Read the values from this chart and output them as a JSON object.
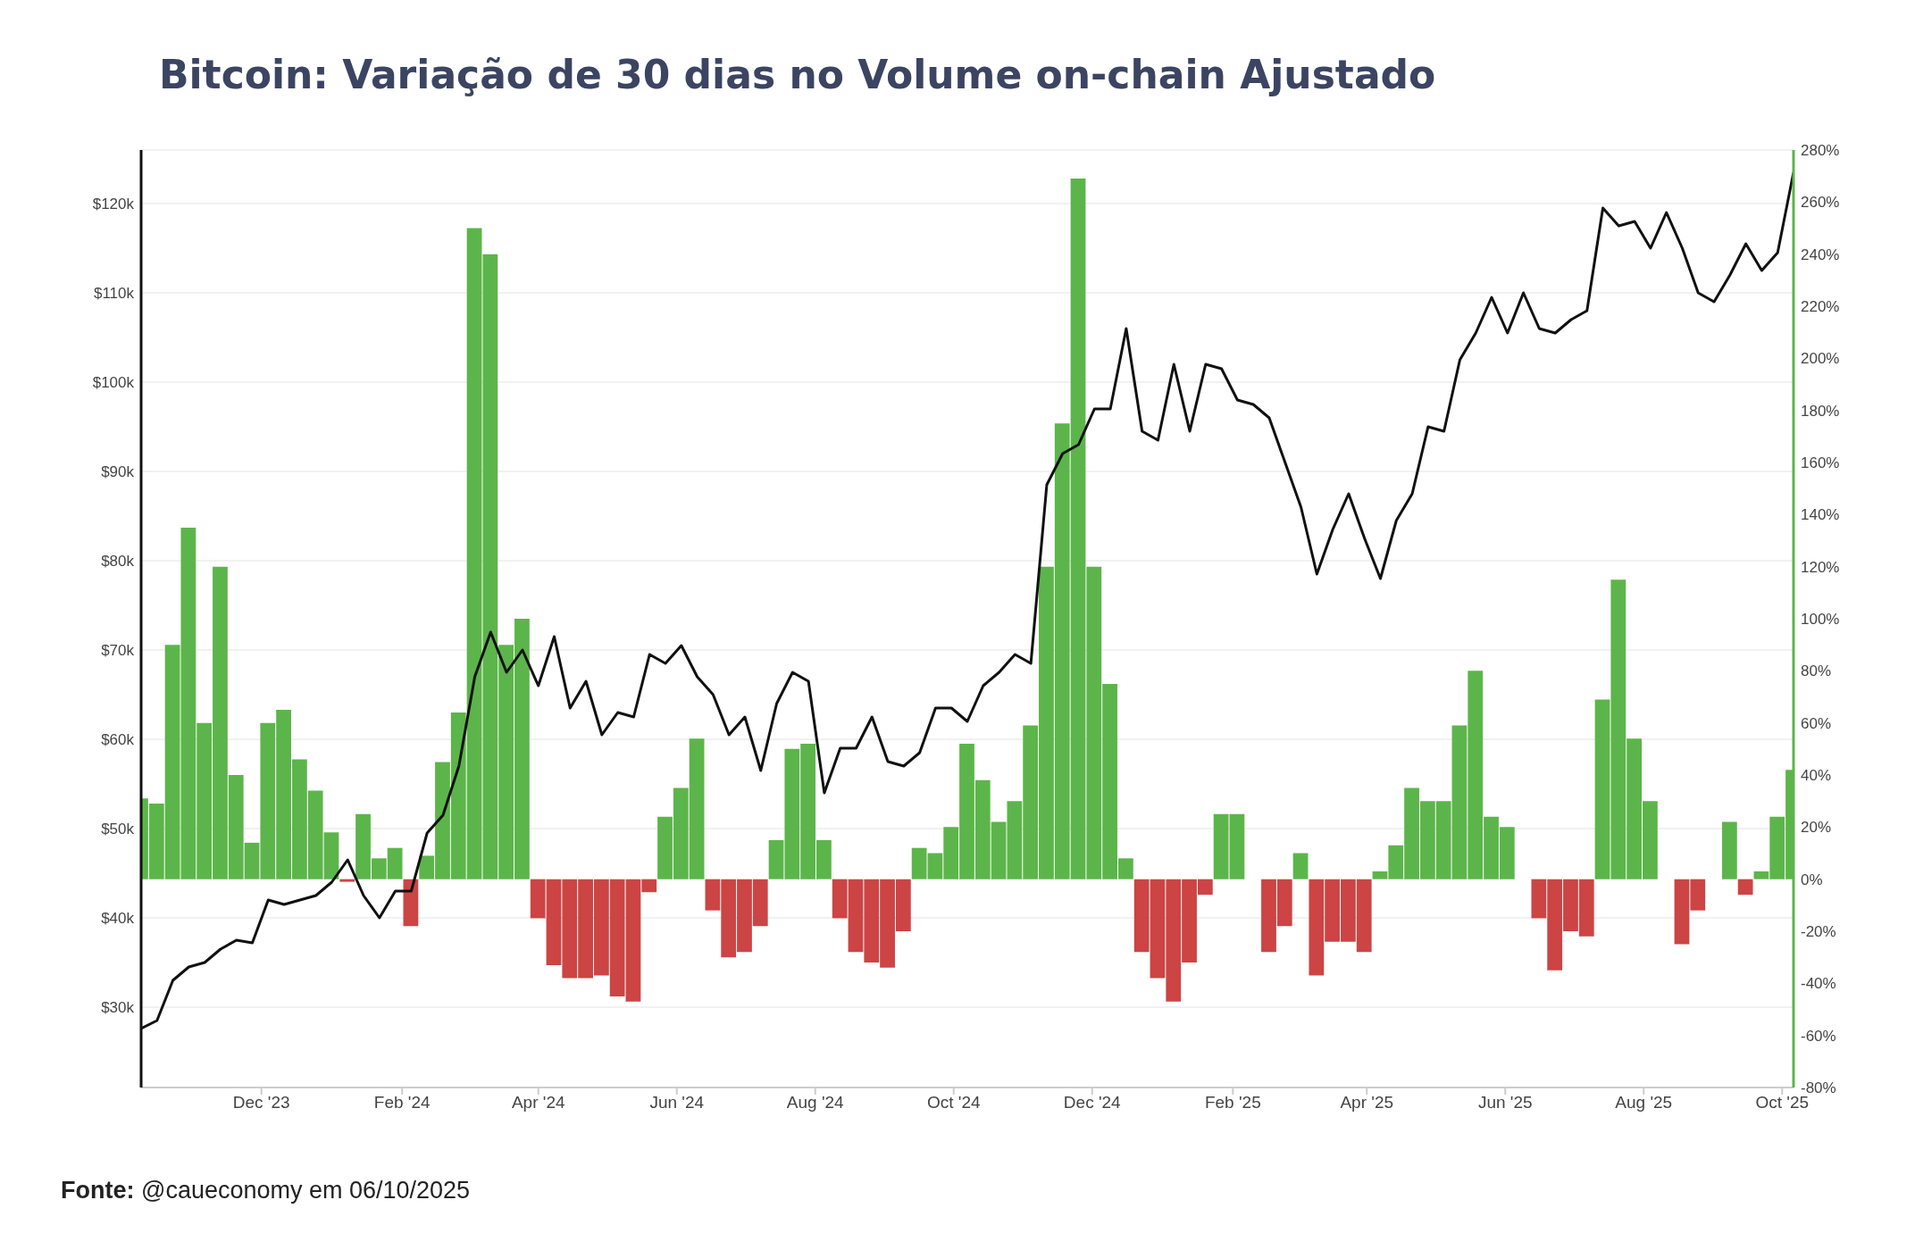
{
  "chart_data": {
    "type": "bar",
    "title": "Bitcoin: Variação de 30 dias no Volume on-chain Ajustado",
    "annotations": [
      "Fonte: @caueconomy em 06/10/2025"
    ],
    "x": [
      "2023-10-09",
      "2023-10-16",
      "2023-10-23",
      "2023-10-30",
      "2023-11-06",
      "2023-11-13",
      "2023-11-20",
      "2023-11-27",
      "2023-12-04",
      "2023-12-11",
      "2023-12-18",
      "2023-12-25",
      "2024-01-01",
      "2024-01-08",
      "2024-01-15",
      "2024-01-22",
      "2024-01-29",
      "2024-02-05",
      "2024-02-12",
      "2024-02-19",
      "2024-02-26",
      "2024-03-04",
      "2024-03-11",
      "2024-03-18",
      "2024-03-25",
      "2024-04-01",
      "2024-04-08",
      "2024-04-15",
      "2024-04-22",
      "2024-04-29",
      "2024-05-06",
      "2024-05-13",
      "2024-05-20",
      "2024-05-27",
      "2024-06-03",
      "2024-06-10",
      "2024-06-17",
      "2024-06-24",
      "2024-07-01",
      "2024-07-08",
      "2024-07-15",
      "2024-07-22",
      "2024-07-29",
      "2024-08-05",
      "2024-08-12",
      "2024-08-19",
      "2024-08-26",
      "2024-09-02",
      "2024-09-09",
      "2024-09-16",
      "2024-09-23",
      "2024-09-30",
      "2024-10-07",
      "2024-10-14",
      "2024-10-21",
      "2024-10-28",
      "2024-11-04",
      "2024-11-11",
      "2024-11-18",
      "2024-11-25",
      "2024-12-02",
      "2024-12-09",
      "2024-12-16",
      "2024-12-23",
      "2024-12-30",
      "2025-01-06",
      "2025-01-13",
      "2025-01-20",
      "2025-01-27",
      "2025-02-03",
      "2025-02-10",
      "2025-02-17",
      "2025-02-24",
      "2025-03-03",
      "2025-03-10",
      "2025-03-17",
      "2025-03-24",
      "2025-03-31",
      "2025-04-07",
      "2025-04-14",
      "2025-04-21",
      "2025-04-28",
      "2025-05-05",
      "2025-05-12",
      "2025-05-19",
      "2025-05-26",
      "2025-06-02",
      "2025-06-09",
      "2025-06-16",
      "2025-06-23",
      "2025-06-30",
      "2025-07-07",
      "2025-07-14",
      "2025-07-21",
      "2025-07-28",
      "2025-08-04",
      "2025-08-11",
      "2025-08-18",
      "2025-08-25",
      "2025-09-01",
      "2025-09-08",
      "2025-09-15",
      "2025-09-22",
      "2025-09-29",
      "2025-10-06"
    ],
    "series": [
      {
        "axis": "y2",
        "values": [
          31,
          29,
          90,
          135,
          60,
          120,
          40,
          14,
          60,
          65,
          46,
          34,
          18,
          -1,
          25,
          8,
          12,
          -18,
          9,
          45,
          64,
          250,
          240,
          90,
          100,
          -15,
          -33,
          -38,
          -38,
          -37,
          -45,
          -47,
          -5,
          24,
          35,
          54,
          -12,
          -30,
          -28,
          -18,
          15,
          50,
          52,
          15,
          -15,
          -28,
          -32,
          -34,
          -20,
          12,
          10,
          20,
          52,
          38,
          22,
          30,
          59,
          120,
          175,
          269,
          120,
          75,
          8,
          -28,
          -38,
          -47,
          -32,
          -6,
          25,
          25,
          0,
          -28,
          -18,
          10,
          -37,
          -24,
          -24,
          -28,
          3,
          13,
          35,
          30,
          30,
          59,
          80,
          24,
          20,
          0,
          -15,
          -35,
          -20,
          -22,
          69,
          115,
          54,
          30,
          0,
          -25,
          -12,
          0,
          22,
          -6,
          3,
          24,
          42
        ],
        "colors": [
          "#5cb54a",
          "#5cb54a",
          "#5cb54a",
          "#5cb54a",
          "#5cb54a",
          "#5cb54a",
          "#5cb54a",
          "#5cb54a",
          "#5cb54a",
          "#5cb54a",
          "#5cb54a",
          "#5cb54a",
          "#5cb54a",
          "#cc4444",
          "#5cb54a",
          "#5cb54a",
          "#5cb54a",
          "#cc4444",
          "#5cb54a",
          "#5cb54a",
          "#5cb54a",
          "#5cb54a",
          "#5cb54a",
          "#5cb54a",
          "#5cb54a",
          "#cc4444",
          "#cc4444",
          "#cc4444",
          "#cc4444",
          "#cc4444",
          "#cc4444",
          "#cc4444",
          "#cc4444",
          "#5cb54a",
          "#5cb54a",
          "#5cb54a",
          "#cc4444",
          "#cc4444",
          "#cc4444",
          "#cc4444",
          "#5cb54a",
          "#5cb54a",
          "#5cb54a",
          "#5cb54a",
          "#cc4444",
          "#cc4444",
          "#cc4444",
          "#cc4444",
          "#cc4444",
          "#5cb54a",
          "#5cb54a",
          "#5cb54a",
          "#5cb54a",
          "#5cb54a",
          "#5cb54a",
          "#5cb54a",
          "#5cb54a",
          "#5cb54a",
          "#5cb54a",
          "#5cb54a",
          "#5cb54a",
          "#5cb54a",
          "#5cb54a",
          "#cc4444",
          "#cc4444",
          "#cc4444",
          "#cc4444",
          "#cc4444",
          "#5cb54a",
          "#5cb54a",
          "#5cb54a",
          "#cc4444",
          "#cc4444",
          "#5cb54a",
          "#cc4444",
          "#cc4444",
          "#cc4444",
          "#cc4444",
          "#5cb54a",
          "#5cb54a",
          "#5cb54a",
          "#5cb54a",
          "#5cb54a",
          "#5cb54a",
          "#5cb54a",
          "#5cb54a",
          "#5cb54a",
          "#5cb54a",
          "#cc4444",
          "#cc4444",
          "#cc4444",
          "#cc4444",
          "#5cb54a",
          "#5cb54a",
          "#5cb54a",
          "#5cb54a",
          "#5cb54a",
          "#cc4444",
          "#cc4444",
          "#5cb54a",
          "#5cb54a",
          "#cc4444",
          "#5cb54a",
          "#5cb54a",
          "#5cb54a"
        ]
      },
      {
        "type": "line",
        "axis": "y",
        "color": "#111111",
        "values": [
          27.6,
          28.5,
          33.0,
          34.5,
          35.0,
          36.5,
          37.5,
          37.2,
          42.0,
          41.5,
          42.0,
          42.5,
          44.0,
          46.5,
          42.5,
          40.0,
          43.0,
          43.0,
          49.5,
          51.5,
          57.0,
          67.0,
          72.0,
          67.5,
          70.0,
          66.0,
          71.5,
          63.5,
          66.5,
          60.5,
          63.0,
          62.5,
          69.5,
          68.5,
          70.5,
          67.0,
          65.0,
          60.5,
          62.5,
          56.5,
          64.0,
          67.5,
          66.5,
          54.0,
          59.0,
          59.0,
          62.5,
          57.5,
          57.0,
          58.5,
          63.5,
          63.5,
          62.0,
          66.0,
          67.5,
          69.5,
          68.5,
          88.5,
          92.0,
          93.0,
          97.0,
          97.0,
          106.0,
          94.5,
          93.5,
          102.0,
          94.5,
          102.0,
          101.5,
          98.0,
          97.5,
          96.0,
          91.0,
          86.0,
          78.5,
          83.5,
          87.5,
          82.5,
          78.0,
          84.5,
          87.5,
          95.0,
          94.5,
          102.5,
          105.5,
          109.5,
          105.5,
          110.0,
          106.0,
          105.5,
          107.0,
          108.0,
          119.5,
          117.5,
          118.0,
          115.0,
          119.0,
          115.0,
          110.0,
          109.0,
          112.0,
          115.5,
          112.5,
          114.5,
          123.5
        ]
      }
    ],
    "xlim": [
      "2023-10-09",
      "2025-10-06"
    ],
    "xticks": [
      {
        "value": "2023-12-01",
        "label": "Dec '23"
      },
      {
        "value": "2024-02-01",
        "label": "Feb '24"
      },
      {
        "value": "2024-04-01",
        "label": "Apr '24"
      },
      {
        "value": "2024-06-01",
        "label": "Jun '24"
      },
      {
        "value": "2024-08-01",
        "label": "Aug '24"
      },
      {
        "value": "2024-10-01",
        "label": "Oct '24"
      },
      {
        "value": "2024-12-01",
        "label": "Dec '24"
      },
      {
        "value": "2025-02-01",
        "label": "Feb '25"
      },
      {
        "value": "2025-04-01",
        "label": "Apr '25"
      },
      {
        "value": "2025-06-01",
        "label": "Jun '25"
      },
      {
        "value": "2025-08-01",
        "label": "Aug '25"
      },
      {
        "value": "2025-10-01",
        "label": "Oct '25"
      }
    ],
    "ylim": [
      21,
      126
    ],
    "yticks": [
      {
        "value": 30,
        "label": "$30k"
      },
      {
        "value": 40,
        "label": "$40k"
      },
      {
        "value": 50,
        "label": "$50k"
      },
      {
        "value": 60,
        "label": "$60k"
      },
      {
        "value": 70,
        "label": "$70k"
      },
      {
        "value": 80,
        "label": "$80k"
      },
      {
        "value": 90,
        "label": "$90k"
      },
      {
        "value": 100,
        "label": "$100k"
      },
      {
        "value": 110,
        "label": "$110k"
      },
      {
        "value": 120,
        "label": "$120k"
      }
    ],
    "y2lim": [
      -80,
      280
    ],
    "y2ticks": [
      {
        "value": -80,
        "label": "-80%"
      },
      {
        "value": -60,
        "label": "-60%"
      },
      {
        "value": -40,
        "label": "-40%"
      },
      {
        "value": -20,
        "label": "-20%"
      },
      {
        "value": 0,
        "label": "0%"
      },
      {
        "value": 20,
        "label": "20%"
      },
      {
        "value": 40,
        "label": "40%"
      },
      {
        "value": 60,
        "label": "60%"
      },
      {
        "value": 80,
        "label": "80%"
      },
      {
        "value": 100,
        "label": "100%"
      },
      {
        "value": 120,
        "label": "120%"
      },
      {
        "value": 140,
        "label": "140%"
      },
      {
        "value": 160,
        "label": "160%"
      },
      {
        "value": 180,
        "label": "180%"
      },
      {
        "value": 200,
        "label": "200%"
      },
      {
        "value": 220,
        "label": "220%"
      },
      {
        "value": 240,
        "label": "240%"
      },
      {
        "value": 260,
        "label": "260%"
      },
      {
        "value": 280,
        "label": "280%"
      }
    ],
    "grid": "y",
    "line_style": "solid",
    "marker": "none"
  }
}
